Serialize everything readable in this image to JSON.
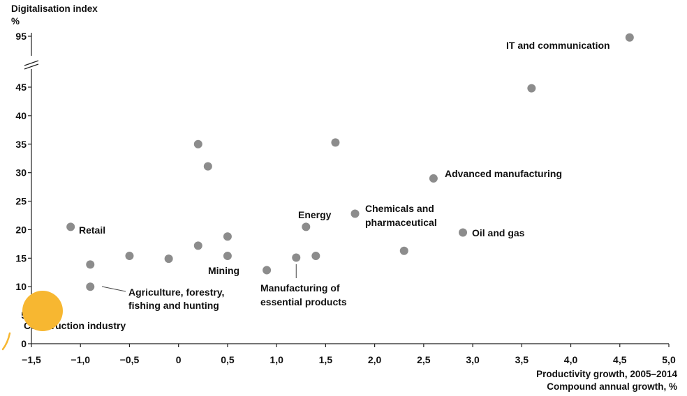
{
  "chart_data": {
    "type": "scatter",
    "ylabel": "Digitalisation index",
    "yunit": "%",
    "xlabel": "Productivity growth, 2005–2014",
    "xlabel2": "Compound annual growth, %",
    "xlim": [
      -1.5,
      5.0
    ],
    "ylim_lower": [
      0,
      45
    ],
    "ylim_upper_tick": 95,
    "axis_break": "y between 45 and 95",
    "grid": false,
    "x_tick_labels": [
      "−1,5",
      "−1,0",
      "−0,5",
      "0",
      "0,5",
      "1,0",
      "1,5",
      "2,0",
      "2,5",
      "3,0",
      "3,5",
      "4,0",
      "4,5",
      "5,0"
    ],
    "y_tick_labels": [
      "0",
      "5",
      "10",
      "15",
      "20",
      "25",
      "30",
      "35",
      "40",
      "45",
      "95"
    ],
    "marker_color": "#8c8c8c",
    "points": [
      {
        "x": 4.6,
        "y": 93,
        "label": "IT and communication"
      },
      {
        "x": 3.6,
        "y": 44.8,
        "label": ""
      },
      {
        "x": 2.6,
        "y": 29,
        "label": "Advanced manufacturing"
      },
      {
        "x": 1.8,
        "y": 22.8,
        "label": "Chemicals and pharmaceutical"
      },
      {
        "x": 2.9,
        "y": 19.5,
        "label": "Oil and gas"
      },
      {
        "x": 2.3,
        "y": 16.3,
        "label": ""
      },
      {
        "x": 1.6,
        "y": 35.3,
        "label": ""
      },
      {
        "x": 1.3,
        "y": 20.5,
        "label": "Energy"
      },
      {
        "x": 1.4,
        "y": 15.4,
        "label": ""
      },
      {
        "x": 1.2,
        "y": 15.1,
        "label": "Manufacturing of essential products"
      },
      {
        "x": 0.9,
        "y": 12.9,
        "label": ""
      },
      {
        "x": 0.5,
        "y": 18.8,
        "label": ""
      },
      {
        "x": 0.5,
        "y": 15.4,
        "label": "Mining"
      },
      {
        "x": 0.2,
        "y": 35,
        "label": ""
      },
      {
        "x": 0.3,
        "y": 31.1,
        "label": ""
      },
      {
        "x": 0.2,
        "y": 17.2,
        "label": ""
      },
      {
        "x": -0.1,
        "y": 14.9,
        "label": ""
      },
      {
        "x": -0.5,
        "y": 15.4,
        "label": ""
      },
      {
        "x": -0.9,
        "y": 13.9,
        "label": ""
      },
      {
        "x": -0.9,
        "y": 10,
        "label": "Agriculture, forestry, fishing and hunting"
      },
      {
        "x": -1.1,
        "y": 20.5,
        "label": "Retail"
      },
      {
        "x": -1.4,
        "y": 5.5,
        "label": "Construction industry"
      }
    ]
  },
  "labels": {
    "it": "IT and communication",
    "adv": "Advanced manufacturing",
    "chem1": "Chemicals and",
    "chem2": "pharmaceutical",
    "oil": "Oil and gas",
    "energy": "Energy",
    "mfg1": "Manufacturing of",
    "mfg2": "essential products",
    "mining": "Mining",
    "agri1": "Agriculture, forestry,",
    "agri2": "fishing and hunting",
    "retail": "Retail",
    "constr": "Construction industry"
  },
  "highlight_color": "#f7b731"
}
